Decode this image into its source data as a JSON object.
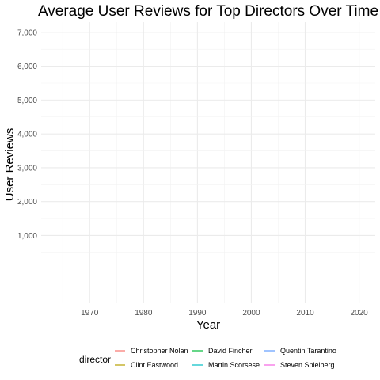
{
  "chart_data": {
    "type": "line",
    "title": "Average User Reviews for Top Directors Over Time",
    "xlabel": "Year",
    "ylabel": "User Reviews",
    "xlim": [
      1961,
      2023
    ],
    "ylim": [
      -1000,
      7300
    ],
    "x_ticks": [
      1970,
      1980,
      1990,
      2000,
      2010,
      2020
    ],
    "x_tick_labels": [
      "1970",
      "1980",
      "1990",
      "2000",
      "2010",
      "2020"
    ],
    "y_ticks": [
      1000,
      2000,
      3000,
      4000,
      5000,
      6000,
      7000
    ],
    "y_tick_labels": [
      "1,000",
      "2,000",
      "3,000",
      "4,000",
      "5,000",
      "6,000",
      "7,000"
    ],
    "grid": true,
    "legend_position": "bottom",
    "legend_title": "director",
    "series": [
      {
        "name": "Christopher Nolan",
        "color": "#F8766D",
        "x": [],
        "y": []
      },
      {
        "name": "Clint Eastwood",
        "color": "#B79F00",
        "x": [],
        "y": []
      },
      {
        "name": "David Fincher",
        "color": "#00BA38",
        "x": [],
        "y": []
      },
      {
        "name": "Martin Scorsese",
        "color": "#00BFC4",
        "x": [],
        "y": []
      },
      {
        "name": "Quentin Tarantino",
        "color": "#619CFF",
        "x": [],
        "y": []
      },
      {
        "name": "Steven Spielberg",
        "color": "#F564E3",
        "x": [],
        "y": []
      }
    ]
  }
}
